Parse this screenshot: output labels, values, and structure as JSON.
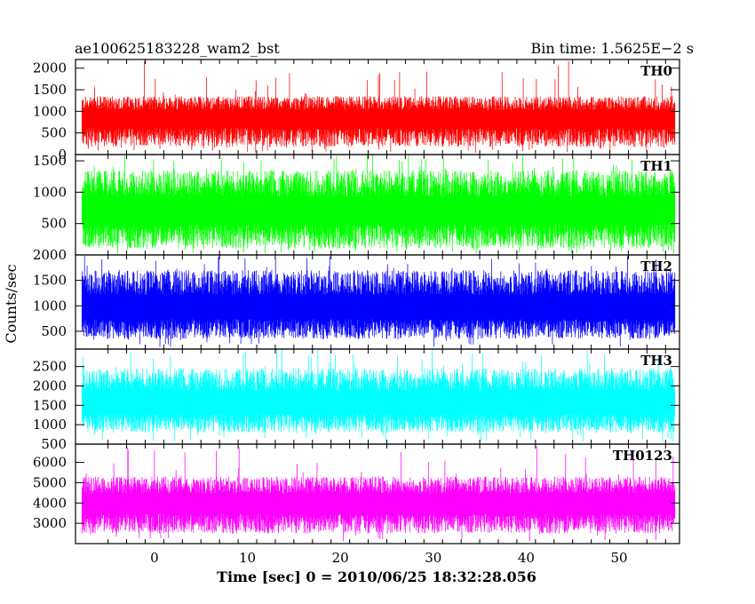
{
  "header": {
    "title": "ae100625183228_wam2_bst",
    "bin_time": "Bin time: 1.5625E−2 s"
  },
  "axes": {
    "xlabel": "Time [sec] 0 = 2010/06/25 18:32:28.056",
    "ylabel": "Counts/sec"
  },
  "chart_data": {
    "type": "line",
    "x_range": [
      -8.5,
      56.5
    ],
    "x_ticks": [
      0,
      10,
      20,
      30,
      40,
      50
    ],
    "x_data_range": [
      -7.8,
      56.0
    ],
    "bin_time_s": 0.015625,
    "panels": [
      {
        "name": "TH0",
        "color": "#ff0000",
        "ylim": [
          0,
          2200
        ],
        "yticks": [
          0,
          500,
          1000,
          1500,
          2000
        ],
        "baseline_typical": 850,
        "typical_high": 1350,
        "typical_low": 180,
        "peak": 2200
      },
      {
        "name": "TH1",
        "color": "#00ff00",
        "ylim": [
          0,
          1600
        ],
        "yticks": [
          500,
          1000,
          1500
        ],
        "baseline_typical": 700,
        "typical_high": 1350,
        "typical_low": 100,
        "peak": 1600
      },
      {
        "name": "TH2",
        "color": "#0000ff",
        "ylim": [
          150,
          2000
        ],
        "yticks": [
          500,
          1000,
          1500,
          2000
        ],
        "baseline_typical": 950,
        "typical_high": 1700,
        "typical_low": 350,
        "peak": 2000
      },
      {
        "name": "TH3",
        "color": "#00ffff",
        "ylim": [
          500,
          2950
        ],
        "yticks": [
          500,
          1000,
          1500,
          2000,
          2500
        ],
        "baseline_typical": 1550,
        "typical_high": 2450,
        "typical_low": 800,
        "peak": 2950
      },
      {
        "name": "TH0123",
        "color": "#ff00ff",
        "ylim": [
          2000,
          6900
        ],
        "yticks": [
          3000,
          4000,
          5000,
          6000
        ],
        "baseline_typical": 4000,
        "typical_high": 5300,
        "typical_low": 2500,
        "peak": 6900
      }
    ]
  }
}
